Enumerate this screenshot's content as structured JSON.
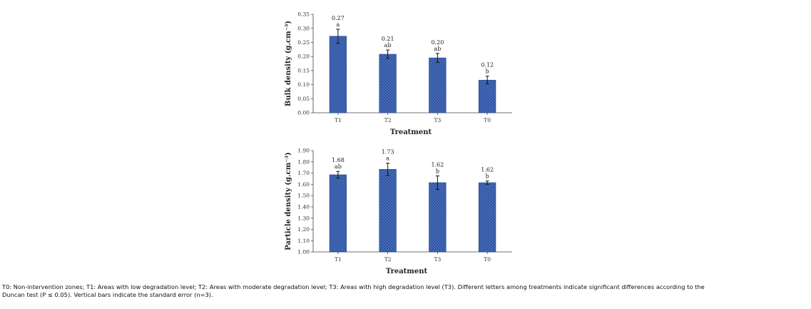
{
  "chart_data": [
    {
      "type": "bar",
      "title": "",
      "xlabel": "Treatment",
      "ylabel": "Bulk density (g.cm⁻³)",
      "categories": [
        "T1",
        "T2",
        "T3",
        "T0"
      ],
      "values": [
        0.27,
        0.21,
        0.2,
        0.12
      ],
      "plotted_values": [
        0.272,
        0.208,
        0.195,
        0.116
      ],
      "errors": [
        0.025,
        0.015,
        0.016,
        0.014
      ],
      "value_labels": [
        "0.27",
        "0.21",
        "0.20",
        "0.12"
      ],
      "significance_letters": [
        "a",
        "ab",
        "ab",
        "b"
      ],
      "ylim": [
        0.0,
        0.35
      ],
      "yticks": [
        "0.00",
        "0.05",
        "0.10",
        "0.15",
        "0.20",
        "0.25",
        "0.30",
        "0.35"
      ],
      "ytick_values": [
        0.0,
        0.05,
        0.1,
        0.15,
        0.2,
        0.25,
        0.3,
        0.35
      ],
      "grid": false,
      "bar_color": "#2f55a6"
    },
    {
      "type": "bar",
      "title": "",
      "xlabel": "Treatment",
      "ylabel": "Particle density (g.cm⁻³)",
      "categories": [
        "T1",
        "T2",
        "T3",
        "T0"
      ],
      "values": [
        1.68,
        1.73,
        1.62,
        1.62
      ],
      "plotted_values": [
        1.685,
        1.733,
        1.615,
        1.615
      ],
      "errors": [
        0.03,
        0.055,
        0.06,
        0.015
      ],
      "value_labels": [
        "1.68",
        "1.73",
        "1.62",
        "1.62"
      ],
      "significance_letters": [
        "ab",
        "a",
        "b",
        "b"
      ],
      "ylim": [
        1.0,
        1.9
      ],
      "yticks": [
        "1.00",
        "1.10",
        "1.20",
        "1.30",
        "1.40",
        "1.50",
        "1.60",
        "1.70",
        "1.80",
        "1.90"
      ],
      "ytick_values": [
        1.0,
        1.1,
        1.2,
        1.3,
        1.4,
        1.5,
        1.6,
        1.7,
        1.8,
        1.9
      ],
      "grid": false,
      "bar_color": "#2f55a6"
    }
  ],
  "caption": {
    "line1": "T0: Non-intervention zones; T1: Areas with low degradation level; T2: Areas with moderate degradation level; T3: Areas with high degradation level (T3). Different letters among treatments indicate significant differences according to the",
    "line2": "Duncan test (P ≤ 0.05). Vertical bars indicate the standard error (n=3)."
  }
}
